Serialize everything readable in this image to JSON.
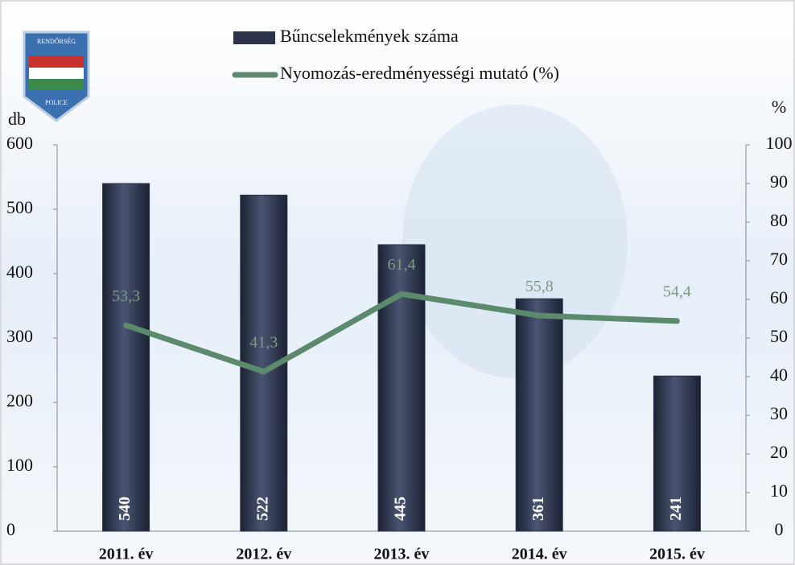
{
  "logo": {
    "top": "RENDŐRSÉG",
    "bottom": "POLICE"
  },
  "chart_data": {
    "type": "bar-line",
    "categories": [
      "2011. év",
      "2012. év",
      "2013. év",
      "2014. év",
      "2015. év"
    ],
    "series": [
      {
        "name": "Bűncselekmények száma",
        "type": "bar",
        "color": "#2b3249",
        "values": [
          540,
          522,
          445,
          361,
          241
        ]
      },
      {
        "name": "Nyomozás-eredményességi mutató (%)",
        "type": "line",
        "axis": "y2",
        "color": "#5b8a6c",
        "values": [
          53.3,
          41.3,
          61.4,
          55.8,
          54.4
        ],
        "value_labels": [
          "53,3",
          "41,3",
          "61,4",
          "55,8",
          "54,4"
        ]
      }
    ],
    "ylabel": "db",
    "y2label": "%",
    "ylim": [
      0,
      600
    ],
    "yticks": [
      0,
      100,
      200,
      300,
      400,
      500,
      600
    ],
    "y2lim": [
      0,
      100
    ],
    "y2ticks": [
      0,
      10,
      20,
      30,
      40,
      50,
      60,
      70,
      80,
      90,
      100
    ]
  }
}
